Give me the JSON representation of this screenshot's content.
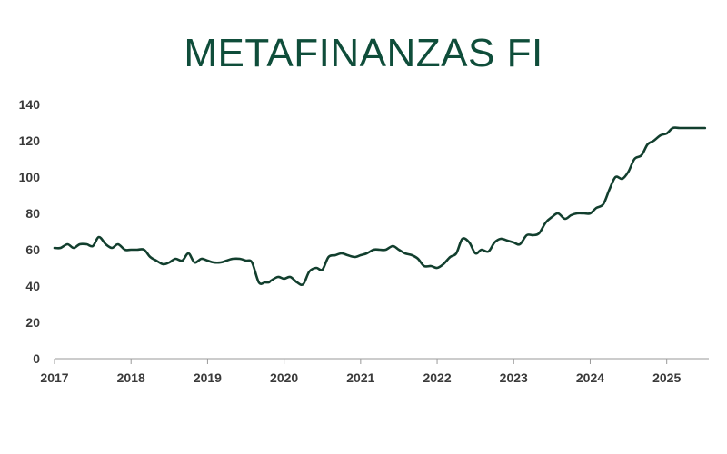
{
  "chart_data": {
    "type": "line",
    "title": "METAFINANZAS FI",
    "xlabel": "",
    "ylabel": "",
    "ylim": [
      0,
      140
    ],
    "yticks": [
      0,
      20,
      40,
      60,
      80,
      100,
      120,
      140
    ],
    "xticks": [
      2017,
      2018,
      2019,
      2020,
      2021,
      2022,
      2023,
      2024,
      2025
    ],
    "xlim": [
      2017.0,
      2025.5
    ],
    "grid": false,
    "line_color": "#123f2e",
    "series": [
      {
        "x": [
          2017.0,
          2017.08,
          2017.17,
          2017.25,
          2017.33,
          2017.42,
          2017.5,
          2017.58,
          2017.67,
          2017.75,
          2017.83,
          2017.92,
          2018.0,
          2018.08,
          2018.17,
          2018.25,
          2018.33,
          2018.42,
          2018.5,
          2018.58,
          2018.67,
          2018.75,
          2018.83,
          2018.92,
          2019.0,
          2019.08,
          2019.17,
          2019.25,
          2019.33,
          2019.42,
          2019.5,
          2019.58,
          2019.67,
          2019.75,
          2019.8,
          2019.83,
          2019.92,
          2020.0,
          2020.08,
          2020.17,
          2020.25,
          2020.33,
          2020.42,
          2020.5,
          2020.58,
          2020.67,
          2020.75,
          2020.83,
          2020.92,
          2021.0,
          2021.08,
          2021.17,
          2021.25,
          2021.33,
          2021.42,
          2021.5,
          2021.58,
          2021.67,
          2021.75,
          2021.83,
          2021.92,
          2022.0,
          2022.08,
          2022.17,
          2022.25,
          2022.33,
          2022.42,
          2022.5,
          2022.58,
          2022.67,
          2022.75,
          2022.83,
          2022.92,
          2023.0,
          2023.08,
          2023.17,
          2023.25,
          2023.33,
          2023.42,
          2023.5,
          2023.58,
          2023.67,
          2023.75,
          2023.83,
          2023.92,
          2024.0,
          2024.08,
          2024.17,
          2024.25,
          2024.33,
          2024.42,
          2024.5,
          2024.58,
          2024.67,
          2024.75,
          2024.83,
          2024.92,
          2025.0,
          2025.08,
          2025.17,
          2025.25,
          2025.33,
          2025.42,
          2025.5
        ],
        "values": [
          61,
          61,
          63,
          61,
          63,
          63,
          62,
          67,
          63,
          61,
          63,
          60,
          60,
          60,
          60,
          56,
          54,
          52,
          53,
          55,
          54,
          58,
          53,
          55,
          54,
          53,
          53,
          54,
          55,
          55,
          54,
          53,
          42,
          42,
          42,
          43,
          45,
          44,
          45,
          42,
          41,
          48,
          50,
          49,
          56,
          57,
          58,
          57,
          56,
          57,
          58,
          60,
          60,
          60,
          62,
          60,
          58,
          57,
          55,
          51,
          51,
          50,
          52,
          56,
          58,
          66,
          64,
          58,
          60,
          59,
          64,
          66,
          65,
          64,
          63,
          68,
          68,
          69,
          75,
          78,
          80,
          77,
          79,
          80,
          80,
          80,
          83,
          85,
          93,
          100,
          99,
          103,
          110,
          112,
          118,
          120,
          123,
          124,
          127,
          127,
          127,
          127,
          127,
          127
        ]
      }
    ]
  }
}
